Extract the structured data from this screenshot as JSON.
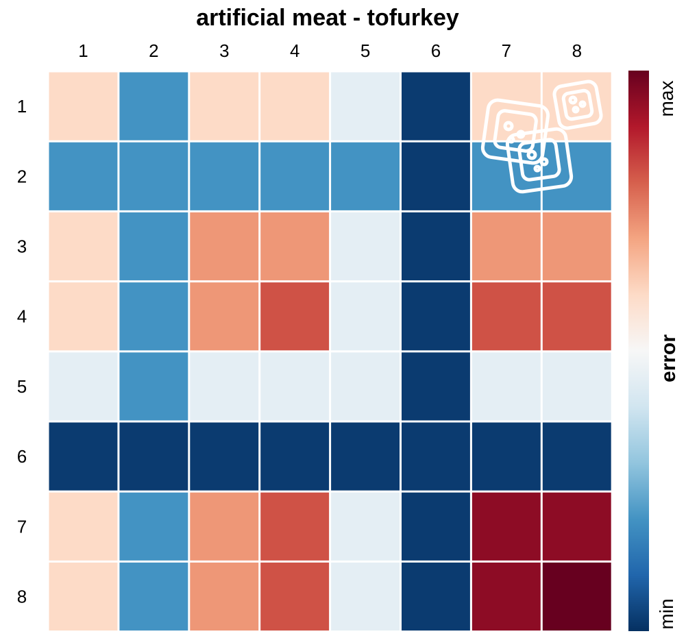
{
  "chart_data": {
    "type": "heatmap",
    "title": "artificial meat - tofurkey",
    "x_tick_labels": [
      "1",
      "2",
      "3",
      "4",
      "5",
      "6",
      "7",
      "8"
    ],
    "y_tick_labels": [
      "1",
      "2",
      "3",
      "4",
      "5",
      "6",
      "7",
      "8"
    ],
    "values": [
      [
        0.6,
        0.2,
        0.6,
        0.6,
        0.45,
        0.02,
        0.6,
        0.6
      ],
      [
        0.2,
        0.2,
        0.2,
        0.2,
        0.2,
        0.02,
        0.2,
        0.2
      ],
      [
        0.6,
        0.2,
        0.72,
        0.72,
        0.45,
        0.02,
        0.72,
        0.72
      ],
      [
        0.6,
        0.2,
        0.72,
        0.82,
        0.45,
        0.02,
        0.82,
        0.82
      ],
      [
        0.45,
        0.2,
        0.45,
        0.45,
        0.45,
        0.02,
        0.45,
        0.45
      ],
      [
        0.02,
        0.02,
        0.02,
        0.02,
        0.02,
        0.02,
        0.02,
        0.02
      ],
      [
        0.6,
        0.2,
        0.72,
        0.82,
        0.45,
        0.02,
        0.95,
        0.95
      ],
      [
        0.6,
        0.2,
        0.72,
        0.82,
        0.45,
        0.02,
        0.95,
        1.0
      ]
    ],
    "colorbar": {
      "title": "error",
      "min_label": "min",
      "max_label": "max",
      "colormap": "RdBu_r",
      "colors": [
        "#053061",
        "#2166ac",
        "#4393c3",
        "#92c5de",
        "#d1e5f0",
        "#f7f7f7",
        "#fddbc7",
        "#f4a582",
        "#d6604d",
        "#b2182b",
        "#67001f"
      ]
    },
    "grid": true,
    "icon": "tofu-cubes-icon"
  }
}
